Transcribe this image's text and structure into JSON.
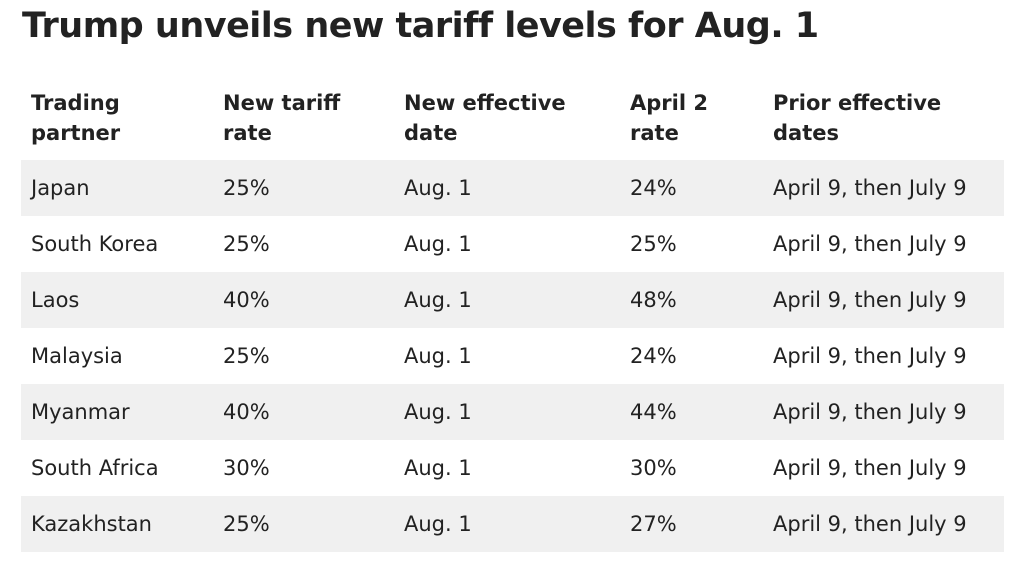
{
  "chart_data": {
    "type": "table",
    "title": "Trump unveils new tariff levels for Aug. 1",
    "columns": [
      "Trading\npartner",
      "New tariff\nrate",
      "New effective\ndate",
      "April 2\nrate",
      "Prior effective\ndates"
    ],
    "rows": [
      [
        "Japan",
        "25%",
        "Aug. 1",
        "24%",
        "April 9, then July 9"
      ],
      [
        "South Korea",
        "25%",
        "Aug. 1",
        "25%",
        "April 9, then July 9"
      ],
      [
        "Laos",
        "40%",
        "Aug. 1",
        "48%",
        "April 9, then July 9"
      ],
      [
        "Malaysia",
        "25%",
        "Aug. 1",
        "24%",
        "April 9, then July 9"
      ],
      [
        "Myanmar",
        "40%",
        "Aug. 1",
        "44%",
        "April 9, then July 9"
      ],
      [
        "South Africa",
        "30%",
        "Aug. 1",
        "30%",
        "April 9, then July 9"
      ],
      [
        "Kazakhstan",
        "25%",
        "Aug. 1",
        "27%",
        "April 9, then July 9"
      ]
    ],
    "row_shading": "alternating",
    "shade_color": "#f0f0f0"
  }
}
